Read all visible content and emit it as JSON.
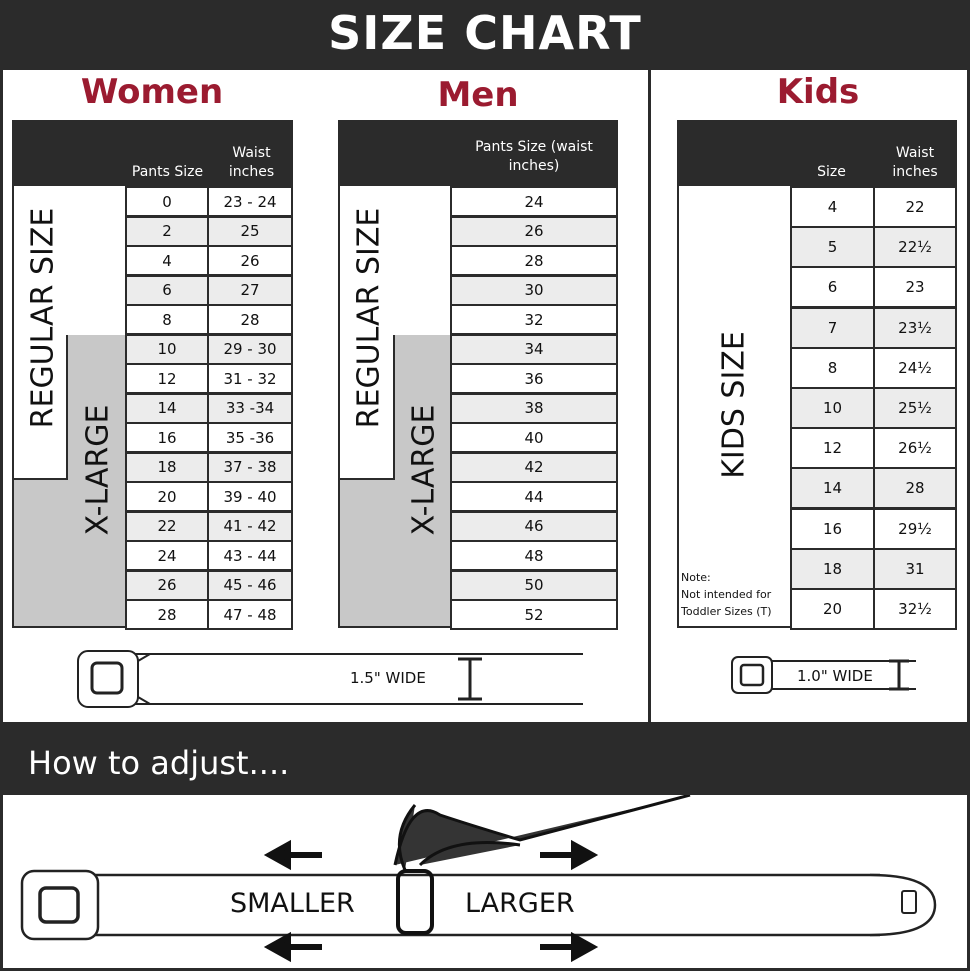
{
  "title": "SIZE CHART",
  "colors": {
    "accent": "#9b1b30",
    "dark": "#2b2b2b",
    "row_alt": "#ececec",
    "xlarge_fill": "#c8c8c8"
  },
  "women": {
    "title": "Women",
    "col1": "Pants Size",
    "col2": "Waist inches",
    "regular_label": "REGULAR SIZE",
    "xlarge_label": "X-LARGE",
    "rows": [
      [
        "0",
        "23 - 24"
      ],
      [
        "2",
        "25"
      ],
      [
        "4",
        "26"
      ],
      [
        "6",
        "27"
      ],
      [
        "8",
        "28"
      ],
      [
        "10",
        "29 - 30"
      ],
      [
        "12",
        "31 - 32"
      ],
      [
        "14",
        "33 -34"
      ],
      [
        "16",
        "35 -36"
      ],
      [
        "18",
        "37 - 38"
      ],
      [
        "20",
        "39 - 40"
      ],
      [
        "22",
        "41 - 42"
      ],
      [
        "24",
        "43 - 44"
      ],
      [
        "26",
        "45 - 46"
      ],
      [
        "28",
        "47 - 48"
      ]
    ],
    "belt_width": "1.5\" WIDE"
  },
  "men": {
    "title": "Men",
    "col1": "Pants Size (waist inches)",
    "regular_label": "REGULAR SIZE",
    "xlarge_label": "X-LARGE",
    "rows": [
      "24",
      "26",
      "28",
      "30",
      "32",
      "34",
      "36",
      "38",
      "40",
      "42",
      "44",
      "46",
      "48",
      "50",
      "52"
    ]
  },
  "kids": {
    "title": "Kids",
    "col1": "Size",
    "col2": "Waist inches",
    "label": "KIDS SIZE",
    "note_title": "Note:",
    "note": "Not intended for Toddler Sizes (T)",
    "rows": [
      [
        "4",
        "22"
      ],
      [
        "5",
        "22½"
      ],
      [
        "6",
        "23"
      ],
      [
        "7",
        "23½"
      ],
      [
        "8",
        "24½"
      ],
      [
        "10",
        "25½"
      ],
      [
        "12",
        "26½"
      ],
      [
        "14",
        "28"
      ],
      [
        "16",
        "29½"
      ],
      [
        "18",
        "31"
      ],
      [
        "20",
        "32½"
      ]
    ],
    "belt_width": "1.0\" WIDE"
  },
  "adjust": {
    "title": "How to adjust....",
    "smaller": "SMALLER",
    "larger": "LARGER"
  }
}
